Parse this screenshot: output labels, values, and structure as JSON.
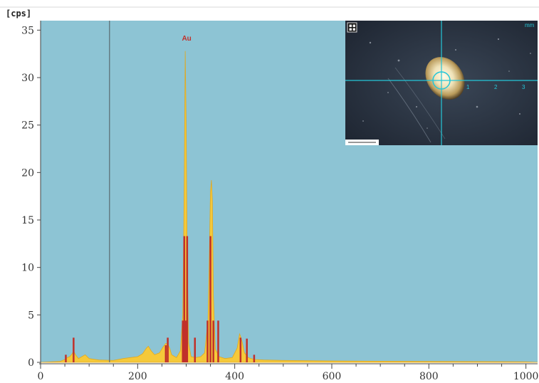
{
  "chart_data": {
    "type": "area",
    "title": "",
    "xlabel": "",
    "ylabel": "[cps]",
    "xlim": [
      0,
      1024
    ],
    "ylim": [
      0,
      36
    ],
    "x_ticks": [
      0,
      200,
      400,
      600,
      800,
      1000
    ],
    "y_ticks": [
      0,
      5,
      10,
      15,
      20,
      25,
      30,
      35
    ],
    "colors": {
      "background": "#8dc4d4",
      "spectrum_fill": "#f5c93a",
      "spectrum_edge": "#e0a820",
      "markers": "#c0302a",
      "cursor": "#5a6a70"
    },
    "cursor_x": 142,
    "peak_annotation": {
      "label": "Au",
      "x": 298,
      "y": 33
    },
    "spectrum": {
      "x": [
        0,
        40,
        50,
        55,
        60,
        65,
        68,
        72,
        78,
        85,
        92,
        100,
        120,
        150,
        170,
        185,
        200,
        210,
        218,
        222,
        228,
        235,
        245,
        252,
        258,
        262,
        266,
        270,
        280,
        288,
        293,
        296,
        298,
        300,
        302,
        305,
        310,
        320,
        330,
        338,
        345,
        348,
        350,
        352,
        354,
        356,
        360,
        368,
        380,
        395,
        405,
        410,
        413,
        416,
        420,
        428,
        440,
        460,
        500,
        600,
        700,
        800,
        900,
        1000,
        1024
      ],
      "y": [
        0,
        0.1,
        0.3,
        0.5,
        0.6,
        0.9,
        1.2,
        0.8,
        0.4,
        0.6,
        0.8,
        0.4,
        0.25,
        0.2,
        0.4,
        0.5,
        0.6,
        0.9,
        1.5,
        1.7,
        1.2,
        0.8,
        1.0,
        1.6,
        2.0,
        1.9,
        1.5,
        0.8,
        0.5,
        1.2,
        5.0,
        19.0,
        32.8,
        25.0,
        11.0,
        2.0,
        0.6,
        0.5,
        0.6,
        1.0,
        4.5,
        12.0,
        18.0,
        19.2,
        17.0,
        7.0,
        1.4,
        0.6,
        0.4,
        0.5,
        1.5,
        3.0,
        2.6,
        2.0,
        1.0,
        0.5,
        0.3,
        0.25,
        0.2,
        0.15,
        0.12,
        0.1,
        0.08,
        0.05,
        0
      ]
    },
    "markers": [
      {
        "x": 52,
        "y": 0.8
      },
      {
        "x": 68,
        "y": 2.6
      },
      {
        "x": 258,
        "y": 1.8
      },
      {
        "x": 262,
        "y": 2.6
      },
      {
        "x": 293,
        "y": 4.4
      },
      {
        "x": 296,
        "y": 13.3
      },
      {
        "x": 299,
        "y": 4.4
      },
      {
        "x": 302,
        "y": 13.3
      },
      {
        "x": 318,
        "y": 2.6
      },
      {
        "x": 344,
        "y": 4.4
      },
      {
        "x": 350,
        "y": 13.3
      },
      {
        "x": 356,
        "y": 4.4
      },
      {
        "x": 366,
        "y": 4.4
      },
      {
        "x": 412,
        "y": 2.6
      },
      {
        "x": 425,
        "y": 2.5
      },
      {
        "x": 440,
        "y": 0.8
      }
    ]
  },
  "inset": {
    "scale_labels": [
      "1",
      "2",
      "3"
    ],
    "corner_label": "mm"
  }
}
